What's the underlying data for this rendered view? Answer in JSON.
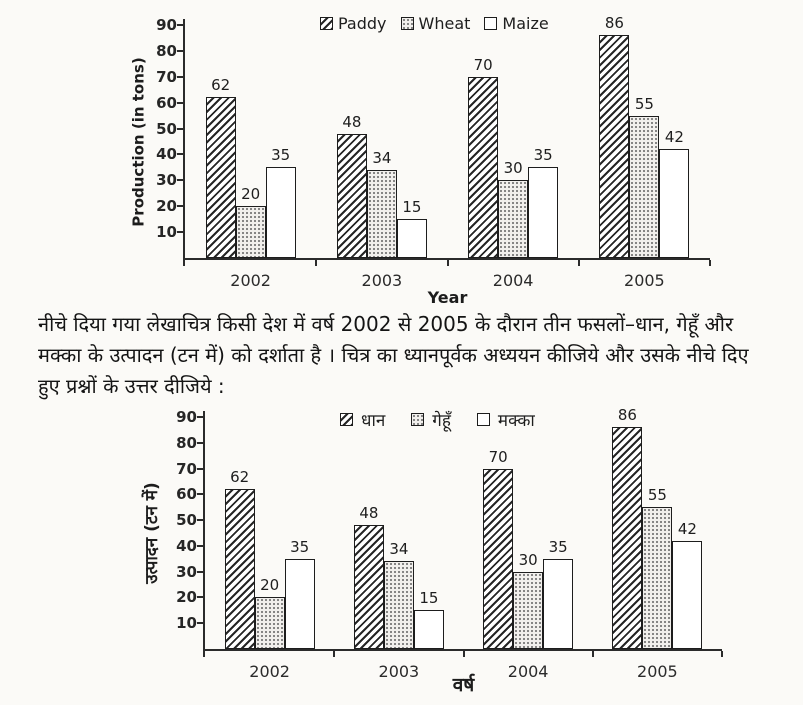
{
  "colors": {
    "ink": "#2b2b2b",
    "paper": "#fbfaf7",
    "bar_border": "#1d1d1d"
  },
  "paragraph": {
    "lines": [
      "नीचे दिया गया लेखाचित्र किसी देश में वर्ष 2002 से 2005 के दौरान तीन फसलों–धान, गेहूँ और",
      "मक्का के उत्पादन (टन में) को दर्शाता है । चित्र का ध्यानपूर्वक अध्ययन कीजिये और उसके नीचे दिए",
      "हुए प्रश्नों के उत्तर दीजिये :"
    ]
  },
  "chart_data": [
    {
      "type": "bar",
      "title": "",
      "categories": [
        "2002",
        "2003",
        "2004",
        "2005"
      ],
      "series": [
        {
          "name": "Paddy",
          "pattern": "diagonal-hatch",
          "values": [
            62,
            48,
            70,
            86
          ]
        },
        {
          "name": "Wheat",
          "pattern": "dots",
          "values": [
            20,
            34,
            30,
            55
          ]
        },
        {
          "name": "Maize",
          "pattern": "white",
          "values": [
            35,
            15,
            35,
            42
          ]
        }
      ],
      "xlabel": "Year",
      "ylabel": "Production (in tons)",
      "ylim": [
        0,
        90
      ],
      "yticks": [
        10,
        20,
        30,
        40,
        50,
        60,
        70,
        80,
        90
      ],
      "grid": false,
      "legend_position": "top",
      "bar_labels": true
    },
    {
      "type": "bar",
      "title": "",
      "categories": [
        "2002",
        "2003",
        "2004",
        "2005"
      ],
      "series": [
        {
          "name": "धान",
          "pattern": "diagonal-hatch",
          "values": [
            62,
            48,
            70,
            86
          ]
        },
        {
          "name": "गेहूँ",
          "pattern": "dots",
          "values": [
            20,
            34,
            30,
            55
          ]
        },
        {
          "name": "मक्का",
          "pattern": "white",
          "values": [
            35,
            15,
            35,
            42
          ]
        }
      ],
      "xlabel": "वर्ष",
      "ylabel": "उत्पादन (टन में)",
      "ylim": [
        0,
        90
      ],
      "yticks": [
        10,
        20,
        30,
        40,
        50,
        60,
        70,
        80,
        90
      ],
      "grid": false,
      "legend_position": "top",
      "bar_labels": true
    }
  ]
}
